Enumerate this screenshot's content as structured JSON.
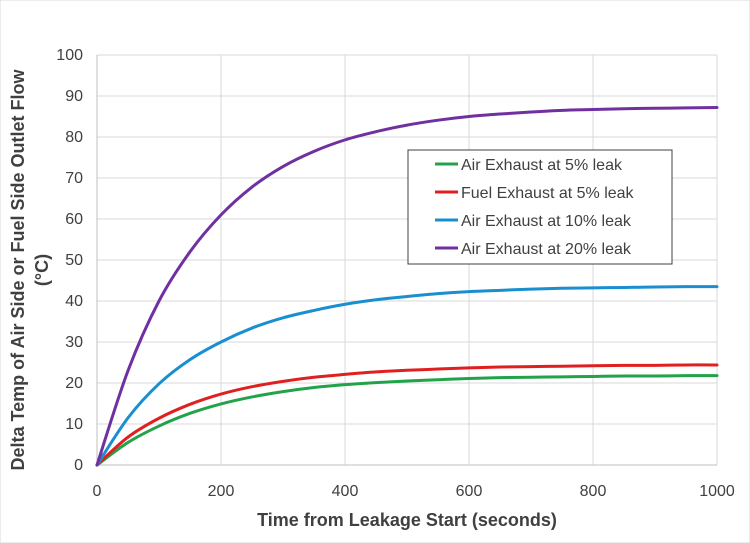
{
  "chart_data": {
    "type": "line",
    "title": "",
    "xlabel": "Time from Leakage Start (seconds)",
    "ylabel_lines": [
      "Delta Temp of Air Side or Fuel Side Outlet Flow",
      "(°C)"
    ],
    "xlim": [
      0,
      1000
    ],
    "ylim": [
      0,
      100
    ],
    "xticks": [
      0,
      200,
      400,
      600,
      800,
      1000
    ],
    "yticks": [
      0,
      10,
      20,
      30,
      40,
      50,
      60,
      70,
      80,
      90,
      100
    ],
    "grid": true,
    "legend_position": "right-center",
    "x": [
      0,
      50,
      100,
      150,
      200,
      250,
      300,
      350,
      400,
      450,
      500,
      550,
      600,
      650,
      700,
      750,
      800,
      850,
      900,
      950,
      1000
    ],
    "series": [
      {
        "name": "Air Exhaust at 5% leak",
        "color": "#22a34a",
        "values": [
          0,
          5.5,
          9.5,
          12.6,
          14.9,
          16.6,
          17.9,
          18.9,
          19.6,
          20.1,
          20.5,
          20.8,
          21.1,
          21.3,
          21.4,
          21.5,
          21.6,
          21.7,
          21.7,
          21.8,
          21.8
        ]
      },
      {
        "name": "Fuel Exhaust at 5% leak",
        "color": "#e02020",
        "values": [
          0,
          6.8,
          11.4,
          14.8,
          17.3,
          19.1,
          20.4,
          21.4,
          22.1,
          22.7,
          23.1,
          23.4,
          23.7,
          23.9,
          24.0,
          24.1,
          24.2,
          24.3,
          24.3,
          24.4,
          24.4
        ]
      },
      {
        "name": "Air Exhaust at 10% leak",
        "color": "#1a8fd0",
        "values": [
          0,
          11.5,
          19.8,
          25.7,
          30.0,
          33.4,
          35.9,
          37.7,
          39.2,
          40.3,
          41.1,
          41.8,
          42.3,
          42.6,
          42.9,
          43.1,
          43.2,
          43.3,
          43.4,
          43.5,
          43.5
        ]
      },
      {
        "name": "Air Exhaust at 20% leak",
        "color": "#7030a0",
        "values": [
          0,
          23.0,
          40.0,
          52.0,
          61.0,
          67.8,
          72.8,
          76.5,
          79.3,
          81.3,
          82.9,
          84.1,
          85.0,
          85.6,
          86.1,
          86.5,
          86.7,
          86.9,
          87.0,
          87.1,
          87.2
        ]
      }
    ]
  }
}
